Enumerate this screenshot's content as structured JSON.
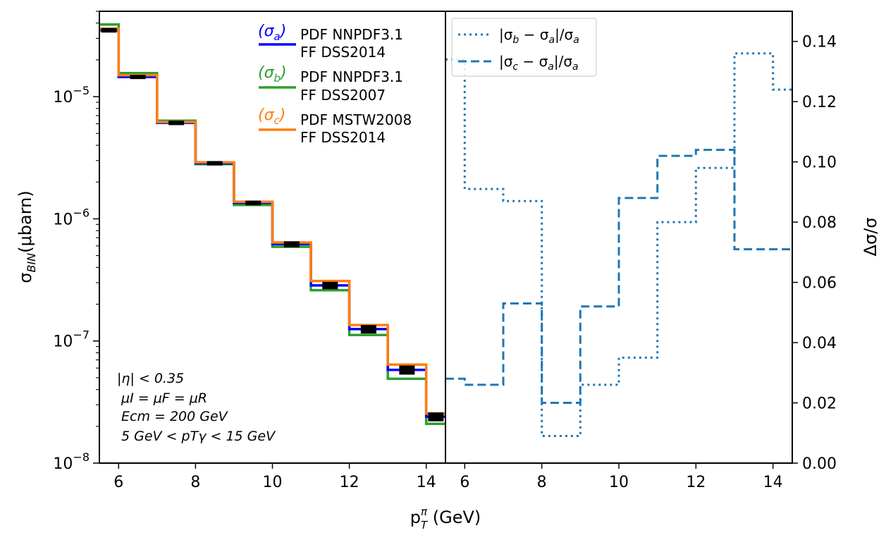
{
  "chart_data": [
    {
      "type": "line",
      "subtype": "step",
      "yscale": "log",
      "xlim": [
        5.5,
        14.5
      ],
      "ylim": [
        1e-08,
        5e-05
      ],
      "xticks": [
        6,
        8,
        10,
        12,
        14
      ],
      "yticks": [
        {
          "value": 1e-08,
          "base": "10",
          "exp": "−8"
        },
        {
          "value": 1e-07,
          "base": "10",
          "exp": "−7"
        },
        {
          "value": 1e-06,
          "base": "10",
          "exp": "−6"
        },
        {
          "value": 1e-05,
          "base": "10",
          "exp": "−5"
        }
      ],
      "ylabel": {
        "main": "σ",
        "sub": "BIN",
        "unit": "(μbarn)"
      },
      "bin_edges": [
        5.5,
        6,
        7,
        8,
        9,
        10,
        11,
        12,
        13,
        14,
        14.5
      ],
      "series": [
        {
          "name": "σa",
          "sym_main": "(σ",
          "sym_sub": "a",
          "sym_close": ")",
          "line1": "PDF NNPDF3.1",
          "line2": "FF DSS2014",
          "color": "#0000ff",
          "values": [
            3.5e-05,
            1.45e-05,
            6.1e-06,
            2.85e-06,
            1.35e-06,
            6.2e-07,
            2.85e-07,
            1.25e-07,
            5.8e-08,
            2.4e-08
          ],
          "errors": [
            1.5e-06,
            5e-07,
            2.5e-07,
            1.2e-07,
            6e-08,
            3.5e-08,
            2e-08,
            1e-08,
            5e-09,
            2e-09
          ]
        },
        {
          "name": "σb",
          "sym_main": "(σ",
          "sym_sub": "b",
          "sym_close": ")",
          "line1": "PDF NNPDF3.1",
          "line2": "FF DSS2007",
          "color": "#2ca02c",
          "values": [
            3.9e-05,
            1.56e-05,
            6.35e-06,
            2.8e-06,
            1.3e-06,
            5.9e-07,
            2.6e-07,
            1.12e-07,
            4.9e-08,
            2.1e-08
          ]
        },
        {
          "name": "σc",
          "sym_main": "(σ",
          "sym_sub": "c",
          "sym_close": ")",
          "line1": "PDF MSTW2008",
          "line2": "FF DSS2014",
          "color": "#ff7f0e",
          "values": [
            3.6e-05,
            1.5e-05,
            6.2e-06,
            2.9e-06,
            1.38e-06,
            6.4e-07,
            3.1e-07,
            1.35e-07,
            6.4e-08,
            2.55e-08
          ]
        }
      ],
      "annotations": [
        "|η| < 0.35",
        "μI = μF = μR",
        "Ecm = 200 GeV",
        "5 GeV < pTγ < 15 GeV"
      ]
    },
    {
      "type": "line",
      "subtype": "step",
      "xlim": [
        5.5,
        14.5
      ],
      "ylim": [
        0,
        0.15
      ],
      "xticks": [
        6,
        8,
        10,
        12,
        14
      ],
      "yticks": [
        0.0,
        0.02,
        0.04,
        0.06,
        0.08,
        0.1,
        0.12,
        0.14
      ],
      "ytick_labels": [
        "0.00",
        "0.02",
        "0.04",
        "0.06",
        "0.08",
        "0.10",
        "0.12",
        "0.14"
      ],
      "ylabel": "Δσ/σ",
      "bin_edges": [
        5.5,
        6,
        7,
        8,
        9,
        10,
        11,
        12,
        13,
        14,
        14.5
      ],
      "series": [
        {
          "name": "|σb − σa|/σa",
          "style": "dotted",
          "color": "#1f77b4",
          "label_parts": {
            "a": "|σ",
            "b": "b",
            "c": " − σ",
            "d": "a",
            "e": "|/σ",
            "f": "a"
          },
          "values": [
            0.134,
            0.091,
            0.087,
            0.009,
            0.026,
            0.035,
            0.08,
            0.098,
            0.136,
            0.124
          ]
        },
        {
          "name": "|σc − σa|/σa",
          "style": "dashed",
          "color": "#1f77b4",
          "label_parts": {
            "a": "|σ",
            "b": "c",
            "c": " − σ",
            "d": "a",
            "e": "|/σ",
            "f": "a"
          },
          "values": [
            0.028,
            0.026,
            0.053,
            0.02,
            0.052,
            0.088,
            0.102,
            0.104,
            0.071,
            0.071
          ]
        }
      ]
    }
  ],
  "xlabel": {
    "main": "p",
    "sup": "π",
    "sub": "T",
    "unit": " (GeV)"
  }
}
